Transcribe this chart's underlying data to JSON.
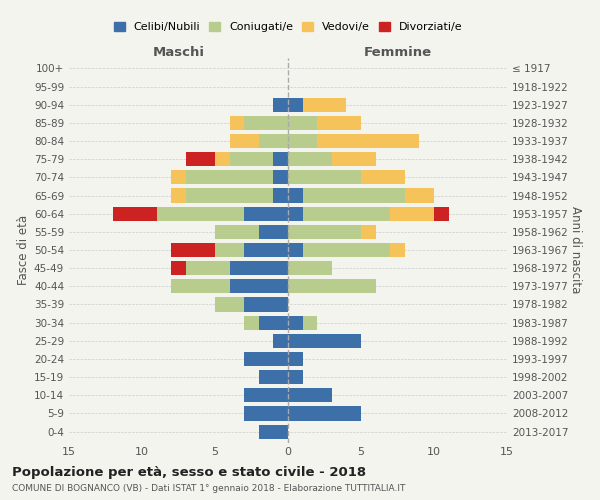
{
  "age_groups": [
    "0-4",
    "5-9",
    "10-14",
    "15-19",
    "20-24",
    "25-29",
    "30-34",
    "35-39",
    "40-44",
    "45-49",
    "50-54",
    "55-59",
    "60-64",
    "65-69",
    "70-74",
    "75-79",
    "80-84",
    "85-89",
    "90-94",
    "95-99",
    "100+"
  ],
  "birth_years": [
    "2013-2017",
    "2008-2012",
    "2003-2007",
    "1998-2002",
    "1993-1997",
    "1988-1992",
    "1983-1987",
    "1978-1982",
    "1973-1977",
    "1968-1972",
    "1963-1967",
    "1958-1962",
    "1953-1957",
    "1948-1952",
    "1943-1947",
    "1938-1942",
    "1933-1937",
    "1928-1932",
    "1923-1927",
    "1918-1922",
    "≤ 1917"
  ],
  "male": {
    "celibi": [
      2,
      3,
      3,
      2,
      3,
      1,
      2,
      3,
      4,
      4,
      3,
      2,
      3,
      1,
      1,
      1,
      0,
      0,
      1,
      0,
      0
    ],
    "coniugati": [
      0,
      0,
      0,
      0,
      0,
      0,
      1,
      2,
      4,
      3,
      2,
      3,
      6,
      6,
      6,
      3,
      2,
      3,
      0,
      0,
      0
    ],
    "vedovi": [
      0,
      0,
      0,
      0,
      0,
      0,
      0,
      0,
      0,
      0,
      0,
      0,
      0,
      1,
      1,
      1,
      2,
      1,
      0,
      0,
      0
    ],
    "divorziati": [
      0,
      0,
      0,
      0,
      0,
      0,
      0,
      0,
      0,
      1,
      3,
      0,
      3,
      0,
      0,
      2,
      0,
      0,
      0,
      0,
      0
    ]
  },
  "female": {
    "nubili": [
      0,
      5,
      3,
      1,
      1,
      5,
      1,
      0,
      0,
      0,
      1,
      0,
      1,
      1,
      0,
      0,
      0,
      0,
      1,
      0,
      0
    ],
    "coniugate": [
      0,
      0,
      0,
      0,
      0,
      0,
      1,
      0,
      6,
      3,
      6,
      5,
      6,
      7,
      5,
      3,
      2,
      2,
      0,
      0,
      0
    ],
    "vedove": [
      0,
      0,
      0,
      0,
      0,
      0,
      0,
      0,
      0,
      0,
      1,
      1,
      3,
      2,
      3,
      3,
      7,
      3,
      3,
      0,
      0
    ],
    "divorziate": [
      0,
      0,
      0,
      0,
      0,
      0,
      0,
      0,
      0,
      0,
      0,
      0,
      1,
      0,
      0,
      0,
      0,
      0,
      0,
      0,
      0
    ]
  },
  "colors": {
    "celibi": "#3d6fa8",
    "coniugati": "#b8cc8e",
    "vedovi": "#f5c35a",
    "divorziati": "#cc2222"
  },
  "title": "Popolazione per età, sesso e stato civile - 2018",
  "subtitle": "COMUNE DI BOGNANCO (VB) - Dati ISTAT 1° gennaio 2018 - Elaborazione TUTTITALIA.IT",
  "xlabel_left": "Maschi",
  "xlabel_right": "Femmine",
  "ylabel_left": "Fasce di età",
  "ylabel_right": "Anni di nascita",
  "xlim": 15,
  "legend_labels": [
    "Celibi/Nubili",
    "Coniugati/e",
    "Vedovi/e",
    "Divorziati/e"
  ],
  "bg_color": "#f4f4ef"
}
